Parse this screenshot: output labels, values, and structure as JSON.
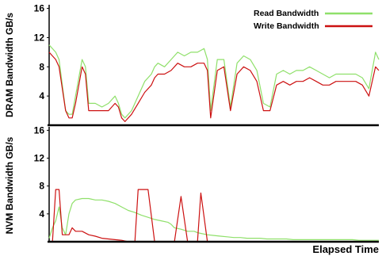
{
  "chart_data": {
    "type": "line",
    "xlabel": "Elapsed Time",
    "legend": {
      "placement": "top-right",
      "entries": [
        "Read Bandwidth",
        "Write Bandwidth"
      ]
    },
    "series_colors": {
      "read": "#8fe06a",
      "write": "#cc1111"
    },
    "grid": false,
    "panels": [
      {
        "ylabel": "DRAM Bandwidth GB/s",
        "ylim": [
          0,
          16.5
        ],
        "yticks": [
          "4",
          "8",
          "12",
          "16"
        ],
        "series": [
          {
            "name": "Read Bandwidth",
            "x": [
              0,
              2,
              3,
              5,
              6,
              7,
              8,
              10,
              11,
              12,
              14,
              16,
              18,
              20,
              21,
              22,
              23,
              25,
              27,
              29,
              31,
              32,
              33,
              35,
              37,
              39,
              41,
              43,
              45,
              47,
              48,
              49,
              51,
              53,
              55,
              57,
              59,
              61,
              63,
              65,
              67,
              69,
              71,
              73,
              75,
              77,
              79,
              81,
              83,
              85,
              87,
              89,
              91,
              93,
              95,
              97,
              99,
              100
            ],
            "y": [
              11,
              10,
              9,
              2,
              1.5,
              1.5,
              4,
              9,
              8,
              3,
              3,
              2.5,
              3,
              4,
              3,
              1.5,
              1,
              2,
              4,
              6,
              7,
              8,
              8.5,
              8,
              9,
              10,
              9.5,
              10,
              10,
              10.5,
              9,
              2,
              9,
              9,
              2.5,
              8.5,
              9.5,
              9,
              7.5,
              3,
              2.5,
              7,
              7.5,
              7,
              7.5,
              7.5,
              8,
              7.5,
              7,
              6.5,
              7,
              7,
              7,
              7,
              6.5,
              5,
              10,
              9
            ]
          },
          {
            "name": "Write Bandwidth",
            "x": [
              0,
              2,
              3,
              5,
              6,
              7,
              8,
              10,
              11,
              12,
              14,
              16,
              18,
              20,
              21,
              22,
              23,
              25,
              27,
              29,
              31,
              32,
              33,
              35,
              37,
              39,
              41,
              43,
              45,
              47,
              48,
              49,
              51,
              53,
              55,
              57,
              59,
              61,
              63,
              65,
              67,
              69,
              71,
              73,
              75,
              77,
              79,
              81,
              83,
              85,
              87,
              89,
              91,
              93,
              95,
              97,
              99,
              100
            ],
            "y": [
              10,
              9,
              8,
              2,
              1,
              1,
              3,
              8,
              7,
              2,
              2,
              2,
              2,
              3,
              2.5,
              1,
              0.5,
              1.5,
              3,
              4.5,
              5.5,
              6.5,
              7,
              7,
              7.5,
              8.5,
              8,
              8,
              8.5,
              8.5,
              7.5,
              1,
              7.5,
              8,
              2,
              7,
              8,
              7.5,
              6,
              2,
              2,
              5.5,
              6,
              5.5,
              6,
              6,
              6.5,
              6,
              5.5,
              5.5,
              6,
              6,
              6,
              6,
              5.5,
              4,
              8,
              7.5
            ]
          }
        ]
      },
      {
        "ylabel": "NVM Bandwidth GB/s",
        "ylim": [
          0,
          16.5
        ],
        "yticks": [
          "4",
          "8",
          "12",
          "16"
        ],
        "series": [
          {
            "name": "Read Bandwidth",
            "x": [
              0,
              1,
              2,
              3,
              4,
              5,
              6,
              7,
              8,
              10,
              12,
              14,
              16,
              18,
              20,
              22,
              24,
              26,
              27,
              28,
              30,
              32,
              34,
              36,
              37,
              38,
              40,
              42,
              44,
              45,
              46,
              48,
              50,
              52,
              54,
              56,
              58,
              60,
              62,
              64,
              66,
              68,
              70,
              72,
              74,
              76,
              78,
              80,
              82,
              84,
              86,
              88,
              90,
              92,
              94,
              96,
              98,
              100
            ],
            "y": [
              0.5,
              2,
              3,
              5,
              2,
              1,
              4,
              5.5,
              6,
              6.2,
              6.2,
              6,
              6,
              5.8,
              5.5,
              5,
              4.5,
              4.2,
              4,
              3.8,
              3.5,
              3.2,
              3,
              2.8,
              2.5,
              2,
              1.8,
              1.5,
              1.5,
              1.3,
              1.2,
              1,
              0.9,
              0.8,
              0.7,
              0.6,
              0.6,
              0.5,
              0.5,
              0.5,
              0.4,
              0.4,
              0.4,
              0.4,
              0.3,
              0.3,
              0.3,
              0.3,
              0.3,
              0.3,
              0.3,
              0.3,
              0.3,
              0.3,
              0.2,
              0.2,
              0.2,
              0.2
            ]
          },
          {
            "name": "Write Bandwidth",
            "x": [
              0,
              1,
              2,
              3,
              4,
              5,
              6,
              7,
              8,
              10,
              12,
              14,
              16,
              18,
              20,
              22,
              24,
              26,
              27,
              28,
              30,
              32,
              34,
              36,
              37,
              38,
              40,
              42,
              44,
              45,
              46,
              48,
              50,
              52,
              54,
              56,
              58,
              60,
              62,
              64,
              66,
              68,
              70,
              72,
              74,
              76,
              78,
              80,
              82,
              84,
              86,
              88,
              90,
              92,
              94,
              96,
              98,
              100
            ],
            "y": [
              0,
              0,
              7.5,
              7.5,
              1,
              1,
              1,
              2,
              1.5,
              1.5,
              1,
              0.8,
              0.5,
              0.4,
              0.3,
              0.2,
              0,
              0,
              7.5,
              7.5,
              7.5,
              0,
              0,
              0,
              0,
              0,
              6.5,
              0,
              0,
              0,
              7,
              0,
              0,
              0,
              0,
              0,
              0,
              0,
              0,
              0,
              0,
              0,
              0,
              0,
              0,
              0,
              0,
              0,
              0,
              0,
              0,
              0,
              0,
              0,
              0,
              0,
              0,
              0
            ]
          }
        ]
      }
    ]
  }
}
